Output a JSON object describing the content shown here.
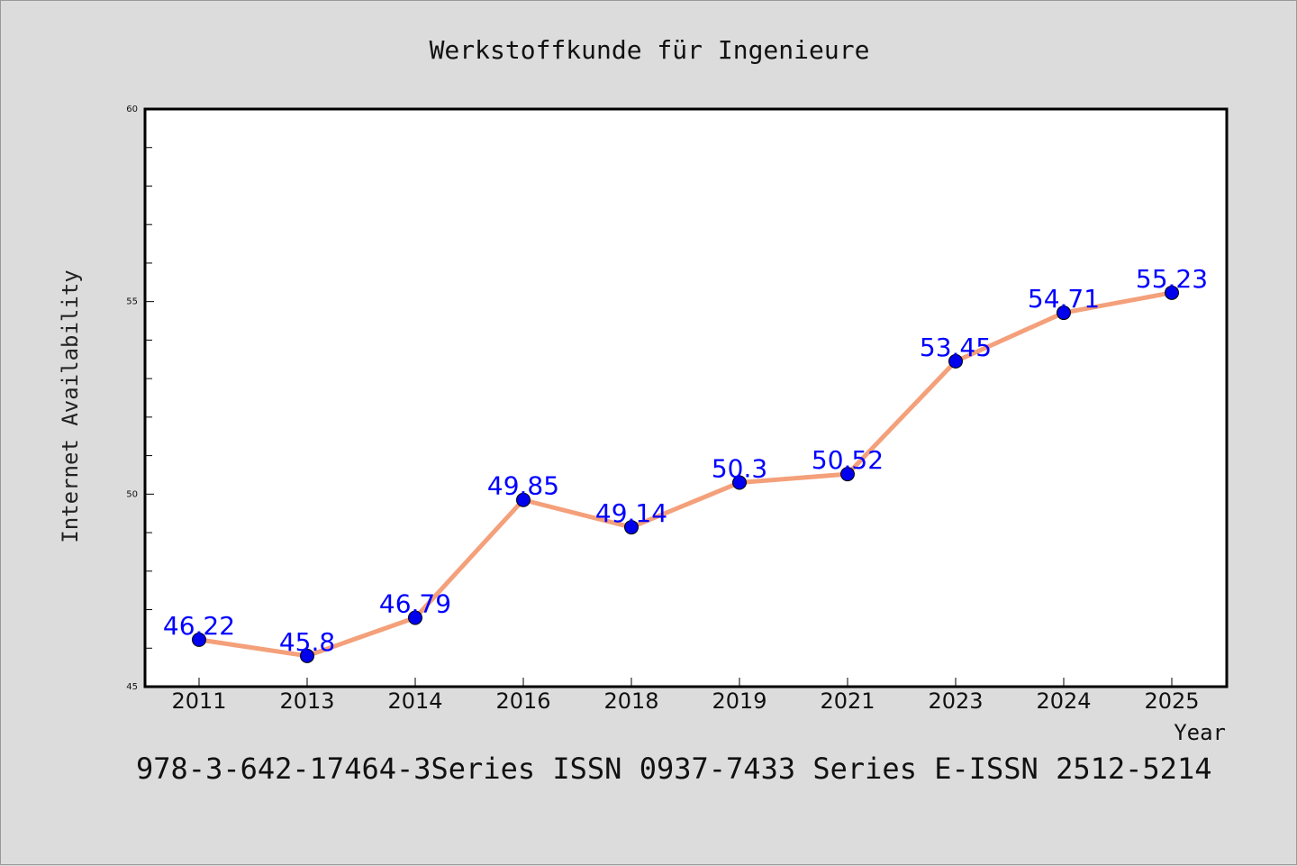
{
  "chart_data": {
    "type": "line",
    "title": "Werkstoffkunde für Ingenieure",
    "xlabel": "Year",
    "ylabel": "Internet Availability",
    "categories": [
      "2011",
      "2013",
      "2014",
      "2016",
      "2018",
      "2019",
      "2021",
      "2023",
      "2024",
      "2025"
    ],
    "series": [
      {
        "values": [
          46.22,
          45.8,
          46.79,
          49.85,
          49.14,
          50.3,
          50.52,
          53.45,
          54.71,
          55.23
        ],
        "labels": [
          "46.22",
          "45.8",
          "46.79",
          "49.85",
          "49.14",
          "50.3",
          "50.52",
          "53.45",
          "54.71",
          "55.23"
        ]
      }
    ],
    "ylim": [
      45,
      60
    ],
    "yticks": [
      "45",
      "50",
      "55",
      "60"
    ],
    "grid": false,
    "colors": {
      "line": "#f4a07a",
      "marker": "#0000ee",
      "label": "#0000ff",
      "plot_bg": "#ffffff",
      "page_bg": "#dcdcdc"
    }
  },
  "footer": "978-3-642-17464-3Series ISSN 0937-7433 Series E-ISSN 2512-5214"
}
